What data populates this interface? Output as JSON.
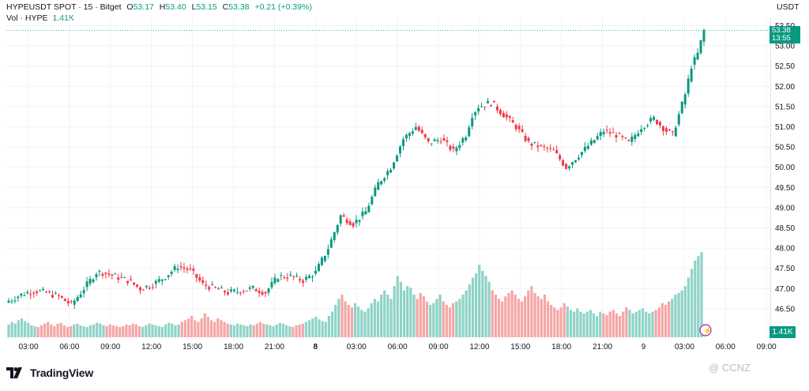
{
  "header": {
    "title": "HYPEUSDT SPOT · 15 · Bitget",
    "o_label": "O",
    "o_value": "53.17",
    "h_label": "H",
    "h_value": "53.40",
    "l_label": "L",
    "l_value": "53.15",
    "c_label": "C",
    "c_value": "53.38",
    "change": "+0.21 (+0.39%)",
    "vol_label": "Vol · HYPE",
    "vol_value": "1.41K"
  },
  "currency": "USDT",
  "last_price": "53.38",
  "countdown": "13:55",
  "volume_tag": "1.41K",
  "footer": {
    "brand": "TradingView",
    "watermark": "@ CCNZ"
  },
  "colors": {
    "up": "#089981",
    "down": "#f23645",
    "vol_up": "#8fd3c7",
    "vol_down": "#f5a6a6"
  },
  "chart_data": {
    "type": "candlestick",
    "ylim": [
      46.0,
      53.5
    ],
    "y_ticks": [
      "53.50",
      "53.00",
      "52.50",
      "52.00",
      "51.50",
      "51.00",
      "50.50",
      "50.00",
      "49.50",
      "49.00",
      "48.50",
      "48.00",
      "47.50",
      "47.00",
      "46.50"
    ],
    "x_ticks": [
      "03:00",
      "06:00",
      "09:00",
      "12:00",
      "15:00",
      "18:00",
      "21:00",
      "8",
      "03:00",
      "06:00",
      "09:00",
      "12:00",
      "15:00",
      "18:00",
      "21:00",
      "9",
      "03:00",
      "06:00",
      "09:00"
    ],
    "x_ticks_bold": [
      "8"
    ],
    "close_path": [
      [
        0,
        46.7
      ],
      [
        4,
        46.85
      ],
      [
        8,
        46.95
      ],
      [
        12,
        46.9
      ],
      [
        16,
        46.8
      ],
      [
        20,
        46.6
      ],
      [
        24,
        47.0
      ],
      [
        28,
        47.4
      ],
      [
        30,
        47.4
      ],
      [
        34,
        47.3
      ],
      [
        38,
        47.2
      ],
      [
        42,
        47.0
      ],
      [
        46,
        47.1
      ],
      [
        50,
        47.3
      ],
      [
        54,
        47.55
      ],
      [
        58,
        47.45
      ],
      [
        62,
        47.1
      ],
      [
        66,
        47.0
      ],
      [
        70,
        46.9
      ],
      [
        74,
        46.95
      ],
      [
        78,
        47.0
      ],
      [
        82,
        46.9
      ],
      [
        86,
        47.3
      ],
      [
        90,
        47.3
      ],
      [
        94,
        47.2
      ],
      [
        98,
        47.4
      ],
      [
        102,
        48.0
      ],
      [
        106,
        48.8
      ],
      [
        110,
        48.6
      ],
      [
        114,
        48.9
      ],
      [
        118,
        49.6
      ],
      [
        122,
        50.0
      ],
      [
        126,
        50.7
      ],
      [
        130,
        51.0
      ],
      [
        134,
        50.6
      ],
      [
        138,
        50.7
      ],
      [
        142,
        50.4
      ],
      [
        146,
        50.8
      ],
      [
        148,
        51.3
      ],
      [
        150,
        51.5
      ],
      [
        154,
        51.6
      ],
      [
        158,
        51.3
      ],
      [
        162,
        51.0
      ],
      [
        166,
        50.6
      ],
      [
        170,
        50.5
      ],
      [
        174,
        50.4
      ],
      [
        178,
        50.0
      ],
      [
        182,
        50.3
      ],
      [
        186,
        50.6
      ],
      [
        190,
        50.9
      ],
      [
        194,
        50.8
      ],
      [
        198,
        50.6
      ],
      [
        202,
        51.0
      ],
      [
        206,
        51.2
      ],
      [
        210,
        50.9
      ],
      [
        212,
        50.8
      ],
      [
        214,
        51.3
      ],
      [
        216,
        51.8
      ],
      [
        218,
        52.5
      ],
      [
        220,
        52.8
      ],
      [
        221,
        53.1
      ],
      [
        222,
        53.38
      ]
    ],
    "volume_levels": [
      0.15,
      0.18,
      0.16,
      0.2,
      0.22,
      0.19,
      0.17,
      0.14,
      0.13,
      0.12,
      0.14,
      0.16,
      0.18,
      0.15,
      0.13,
      0.16,
      0.17,
      0.14,
      0.12,
      0.13,
      0.15,
      0.16,
      0.14,
      0.13,
      0.12,
      0.14,
      0.15,
      0.17,
      0.16,
      0.14,
      0.13,
      0.15,
      0.14,
      0.13,
      0.12,
      0.13,
      0.15,
      0.14,
      0.16,
      0.15,
      0.13,
      0.12,
      0.14,
      0.16,
      0.15,
      0.14,
      0.13,
      0.12,
      0.15,
      0.17,
      0.16,
      0.14,
      0.15,
      0.18,
      0.2,
      0.22,
      0.25,
      0.2,
      0.18,
      0.22,
      0.28,
      0.24,
      0.2,
      0.18,
      0.22,
      0.2,
      0.18,
      0.16,
      0.15,
      0.14,
      0.16,
      0.15,
      0.14,
      0.13,
      0.15,
      0.14,
      0.16,
      0.18,
      0.16,
      0.15,
      0.14,
      0.13,
      0.15,
      0.17,
      0.16,
      0.14,
      0.13,
      0.12,
      0.14,
      0.15,
      0.16,
      0.18,
      0.2,
      0.22,
      0.24,
      0.21,
      0.19,
      0.18,
      0.25,
      0.3,
      0.38,
      0.45,
      0.5,
      0.42,
      0.38,
      0.35,
      0.4,
      0.36,
      0.32,
      0.3,
      0.34,
      0.4,
      0.45,
      0.42,
      0.5,
      0.55,
      0.5,
      0.45,
      0.6,
      0.72,
      0.65,
      0.55,
      0.6,
      0.58,
      0.5,
      0.45,
      0.52,
      0.48,
      0.42,
      0.38,
      0.4,
      0.45,
      0.5,
      0.42,
      0.38,
      0.35,
      0.4,
      0.42,
      0.45,
      0.5,
      0.55,
      0.62,
      0.7,
      0.75,
      0.85,
      0.78,
      0.72,
      0.65,
      0.55,
      0.5,
      0.45,
      0.42,
      0.48,
      0.52,
      0.55,
      0.5,
      0.45,
      0.42,
      0.48,
      0.55,
      0.6,
      0.52,
      0.48,
      0.45,
      0.5,
      0.42,
      0.38,
      0.35,
      0.32,
      0.35,
      0.4,
      0.36,
      0.32,
      0.3,
      0.34,
      0.3,
      0.28,
      0.3,
      0.32,
      0.28,
      0.25,
      0.3,
      0.28,
      0.26,
      0.3,
      0.32,
      0.28,
      0.25,
      0.3,
      0.35,
      0.32,
      0.28,
      0.3,
      0.32,
      0.34,
      0.3,
      0.28,
      0.3,
      0.32,
      0.35,
      0.4,
      0.38,
      0.42,
      0.45,
      0.5,
      0.52,
      0.55,
      0.6,
      0.7,
      0.8,
      0.9,
      0.95,
      1.0
    ]
  }
}
